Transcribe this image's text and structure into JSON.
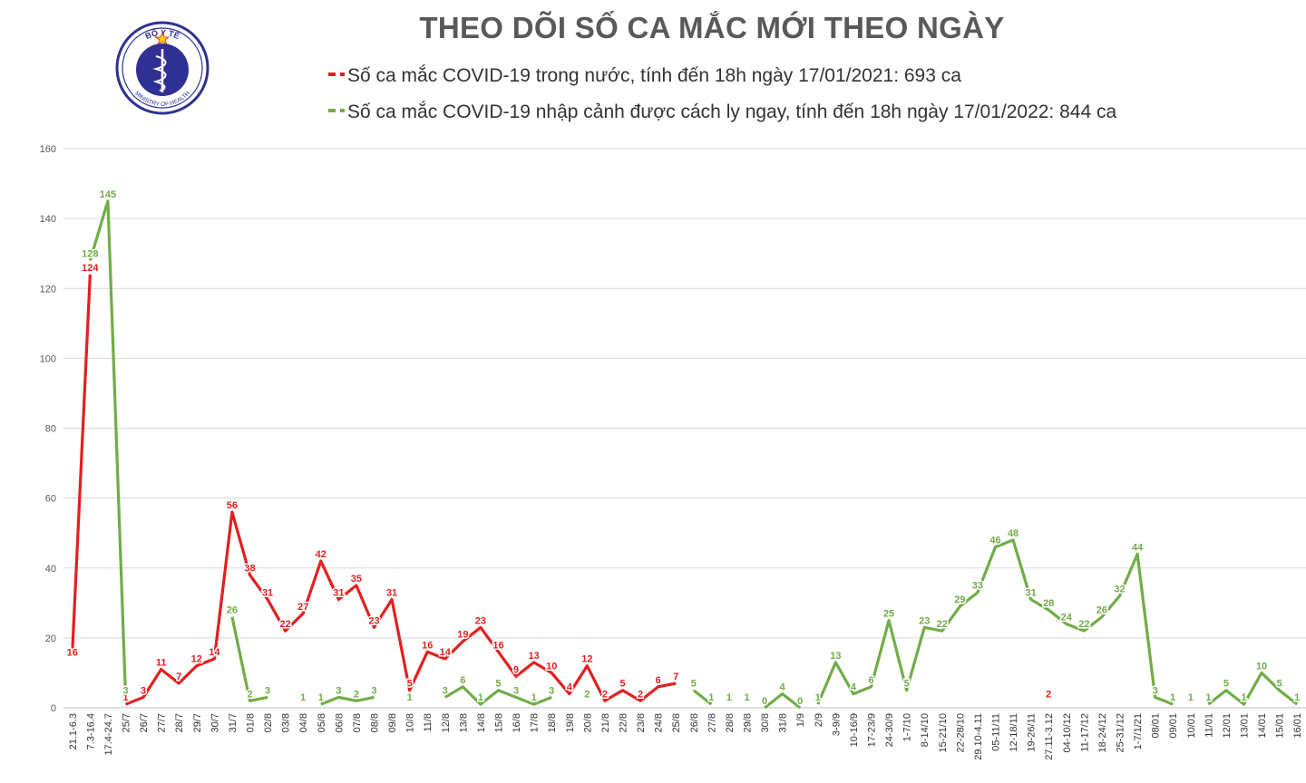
{
  "logo": {
    "text_top": "BỘ Y TẾ",
    "text_bottom": "MINISTRY OF HEALTH"
  },
  "colors": {
    "domestic": "#e31f1f",
    "imported": "#70ad47",
    "grid": "#d9d9d9",
    "title": "#595959"
  },
  "chart_data": {
    "type": "line",
    "title": "THEO DÕI SỐ CA MẮC MỚI THEO NGÀY",
    "xlabel": "",
    "ylabel": "",
    "ylim": [
      0,
      160
    ],
    "yticks": [
      0,
      20,
      40,
      60,
      80,
      100,
      120,
      140,
      160
    ],
    "grid": true,
    "legend_position": "top",
    "categories": [
      "21.1-6.3",
      "7.3-16.4",
      "17.4-24.7",
      "25/7",
      "26/7",
      "27/7",
      "28/7",
      "29/7",
      "30/7",
      "31/7",
      "01/8",
      "02/8",
      "03/8",
      "04/8",
      "05/8",
      "06/8",
      "07/8",
      "08/8",
      "09/8",
      "10/8",
      "11/8",
      "12/8",
      "13/8",
      "14/8",
      "15/8",
      "16/8",
      "17/8",
      "18/8",
      "19/8",
      "20/8",
      "21/8",
      "22/8",
      "23/8",
      "24/8",
      "25/8",
      "26/8",
      "27/8",
      "28/8",
      "29/8",
      "30/8",
      "31/8",
      "1/9",
      "2/9",
      "3-9/9",
      "10-16/9",
      "17-23/9",
      "24-30/9",
      "1-7/10",
      "8-14/10",
      "15-21/10",
      "22-28/10",
      "29.10-4.11",
      "05-11/11",
      "12-18/11",
      "19-26/11",
      "27.11-3.12",
      "04-10/12",
      "11-17/12",
      "18-24/12",
      "25-31/12",
      "1-7/1/21",
      "08/01",
      "09/01",
      "10/01",
      "11/01",
      "12/01",
      "13/01",
      "14/01",
      "15/01",
      "16/01"
    ],
    "series": [
      {
        "name": "Số ca mắc COVID-19 trong nước, tính đến 18h ngày 17/01/2021: 693 ca",
        "color": "#e31f1f",
        "values": [
          16,
          124,
          null,
          1,
          3,
          11,
          7,
          12,
          14,
          56,
          38,
          31,
          22,
          27,
          42,
          31,
          35,
          23,
          31,
          5,
          16,
          14,
          19,
          23,
          16,
          9,
          13,
          10,
          4,
          12,
          2,
          5,
          2,
          6,
          7,
          null,
          1,
          1,
          1,
          null,
          null,
          null,
          null,
          null,
          null,
          null,
          null,
          null,
          null,
          null,
          null,
          null,
          null,
          null,
          null,
          2,
          null,
          null,
          null,
          null,
          null,
          null,
          null,
          null,
          null,
          null,
          null,
          null,
          null,
          null
        ]
      },
      {
        "name": "Số ca mắc COVID-19 nhập cảnh được cách ly ngay, tính đến 18h ngày 17/01/2022: 844 ca",
        "color": "#70ad47",
        "values": [
          null,
          128,
          145,
          3,
          null,
          null,
          null,
          null,
          null,
          26,
          2,
          3,
          null,
          1,
          1,
          3,
          2,
          3,
          null,
          1,
          null,
          3,
          6,
          1,
          5,
          3,
          1,
          3,
          null,
          2,
          null,
          null,
          null,
          null,
          null,
          5,
          1,
          1,
          1,
          0,
          4,
          0,
          1,
          13,
          4,
          6,
          25,
          5,
          23,
          22,
          29,
          33,
          46,
          48,
          31,
          28,
          24,
          22,
          26,
          32,
          44,
          3,
          1,
          1,
          1,
          5,
          1,
          10,
          5,
          1
        ]
      }
    ]
  },
  "legend": {
    "domestic": "Số ca mắc COVID-19 trong nước, tính đến 18h ngày 17/01/2021: 693 ca",
    "imported": "Số ca mắc COVID-19 nhập cảnh được cách ly ngay, tính đến 18h ngày 17/01/2022: 844 ca"
  }
}
